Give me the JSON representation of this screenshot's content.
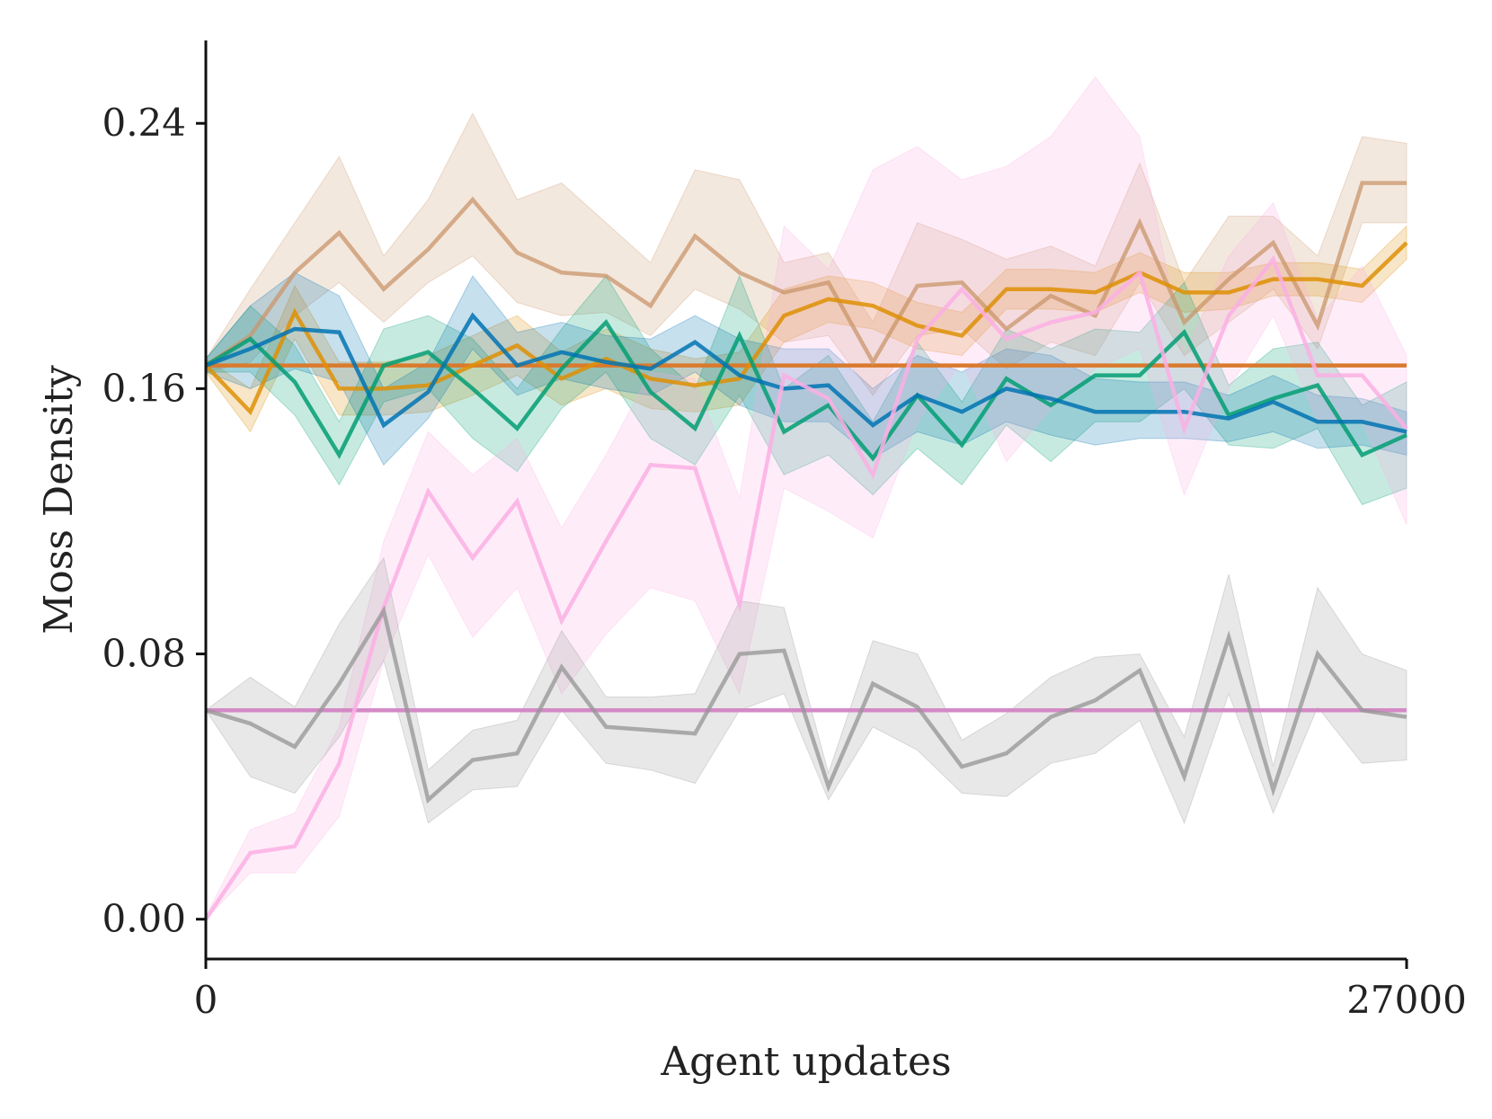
{
  "chart_data": {
    "type": "line",
    "title": "",
    "xlabel": "Agent updates",
    "ylabel": "Moss Density",
    "xlim": [
      0,
      27000
    ],
    "ylim": [
      -0.012,
      0.265
    ],
    "xticks": [
      0,
      27000
    ],
    "xtick_labels": [
      "0",
      "27000"
    ],
    "yticks": [
      0.0,
      0.08,
      0.16,
      0.24
    ],
    "ytick_labels": [
      "0.00",
      "0.08",
      "0.16",
      "0.24"
    ],
    "grid": false,
    "legend": "none",
    "x": [
      0,
      1000,
      2000,
      3000,
      4000,
      5000,
      6000,
      7000,
      8000,
      9000,
      10000,
      11000,
      12000,
      13000,
      14000,
      15000,
      16000,
      17000,
      18000,
      19000,
      20000,
      21000,
      22000,
      23000,
      24000,
      25000,
      26000,
      27000
    ],
    "series": [
      {
        "name": "tan",
        "color": "#c9966b",
        "values": [
          0.167,
          0.176,
          0.195,
          0.207,
          0.19,
          0.202,
          0.217,
          0.201,
          0.195,
          0.194,
          0.185,
          0.206,
          0.195,
          0.189,
          0.192,
          0.168,
          0.191,
          0.192,
          0.178,
          0.188,
          0.182,
          0.21,
          0.18,
          0.193,
          0.204,
          0.179,
          0.222,
          0.222
        ],
        "lower": [
          0.165,
          0.168,
          0.182,
          0.192,
          0.18,
          0.192,
          0.2,
          0.186,
          0.182,
          0.183,
          0.176,
          0.19,
          0.184,
          0.174,
          0.176,
          0.158,
          0.176,
          0.178,
          0.166,
          0.174,
          0.17,
          0.192,
          0.17,
          0.18,
          0.19,
          0.172,
          0.21,
          0.21
        ],
        "upper": [
          0.169,
          0.19,
          0.21,
          0.23,
          0.2,
          0.217,
          0.243,
          0.217,
          0.222,
          0.21,
          0.198,
          0.226,
          0.223,
          0.198,
          0.201,
          0.18,
          0.21,
          0.205,
          0.199,
          0.203,
          0.197,
          0.228,
          0.192,
          0.212,
          0.212,
          0.2,
          0.236,
          0.234
        ]
      },
      {
        "name": "orange",
        "color": "#de8f05",
        "values": [
          0.167,
          0.153,
          0.183,
          0.16,
          0.16,
          0.161,
          0.167,
          0.173,
          0.163,
          0.169,
          0.163,
          0.161,
          0.163,
          0.182,
          0.187,
          0.185,
          0.179,
          0.176,
          0.19,
          0.19,
          0.189,
          0.195,
          0.189,
          0.189,
          0.193,
          0.193,
          0.191,
          0.204
        ],
        "lower": [
          0.165,
          0.147,
          0.175,
          0.152,
          0.152,
          0.153,
          0.158,
          0.164,
          0.155,
          0.16,
          0.154,
          0.153,
          0.155,
          0.174,
          0.18,
          0.178,
          0.172,
          0.17,
          0.184,
          0.184,
          0.183,
          0.189,
          0.183,
          0.184,
          0.188,
          0.188,
          0.186,
          0.199
        ],
        "upper": [
          0.169,
          0.16,
          0.191,
          0.168,
          0.168,
          0.17,
          0.176,
          0.182,
          0.171,
          0.178,
          0.172,
          0.169,
          0.171,
          0.19,
          0.194,
          0.192,
          0.186,
          0.183,
          0.196,
          0.196,
          0.195,
          0.201,
          0.195,
          0.195,
          0.198,
          0.198,
          0.196,
          0.209
        ]
      },
      {
        "name": "green",
        "color": "#029e73",
        "values": [
          0.167,
          0.175,
          0.162,
          0.14,
          0.167,
          0.171,
          0.16,
          0.148,
          0.166,
          0.18,
          0.159,
          0.148,
          0.176,
          0.147,
          0.155,
          0.139,
          0.158,
          0.143,
          0.163,
          0.155,
          0.164,
          0.164,
          0.177,
          0.152,
          0.157,
          0.161,
          0.14,
          0.146
        ],
        "lower": [
          0.165,
          0.165,
          0.152,
          0.131,
          0.156,
          0.16,
          0.145,
          0.135,
          0.154,
          0.165,
          0.145,
          0.137,
          0.158,
          0.134,
          0.14,
          0.128,
          0.142,
          0.131,
          0.149,
          0.138,
          0.15,
          0.15,
          0.16,
          0.143,
          0.142,
          0.148,
          0.125,
          0.13
        ],
        "upper": [
          0.169,
          0.185,
          0.173,
          0.15,
          0.178,
          0.182,
          0.175,
          0.16,
          0.178,
          0.194,
          0.172,
          0.16,
          0.194,
          0.16,
          0.17,
          0.15,
          0.174,
          0.156,
          0.178,
          0.172,
          0.178,
          0.177,
          0.192,
          0.161,
          0.172,
          0.174,
          0.155,
          0.162
        ]
      },
      {
        "name": "blue",
        "color": "#0173b2",
        "values": [
          0.167,
          0.172,
          0.178,
          0.177,
          0.149,
          0.159,
          0.182,
          0.167,
          0.171,
          0.168,
          0.166,
          0.174,
          0.164,
          0.16,
          0.161,
          0.149,
          0.158,
          0.153,
          0.16,
          0.157,
          0.153,
          0.153,
          0.153,
          0.151,
          0.156,
          0.15,
          0.15,
          0.147
        ],
        "lower": [
          0.165,
          0.16,
          0.166,
          0.162,
          0.137,
          0.151,
          0.172,
          0.158,
          0.163,
          0.16,
          0.158,
          0.165,
          0.155,
          0.15,
          0.15,
          0.139,
          0.147,
          0.143,
          0.15,
          0.146,
          0.143,
          0.145,
          0.145,
          0.144,
          0.147,
          0.142,
          0.143,
          0.14
        ],
        "upper": [
          0.169,
          0.185,
          0.195,
          0.188,
          0.16,
          0.168,
          0.194,
          0.177,
          0.18,
          0.176,
          0.175,
          0.182,
          0.175,
          0.172,
          0.172,
          0.16,
          0.17,
          0.165,
          0.172,
          0.17,
          0.163,
          0.162,
          0.162,
          0.158,
          0.164,
          0.158,
          0.157,
          0.153
        ]
      },
      {
        "name": "pink",
        "color": "#fbafe4",
        "values": [
          0.0,
          0.02,
          0.022,
          0.047,
          0.094,
          0.129,
          0.109,
          0.126,
          0.09,
          0.114,
          0.137,
          0.136,
          0.095,
          0.164,
          0.157,
          0.134,
          0.175,
          0.19,
          0.175,
          0.18,
          0.183,
          0.195,
          0.148,
          0.182,
          0.199,
          0.164,
          0.164,
          0.148
        ],
        "lower": [
          0.0,
          0.014,
          0.014,
          0.031,
          0.078,
          0.11,
          0.085,
          0.1,
          0.068,
          0.086,
          0.1,
          0.096,
          0.068,
          0.13,
          0.123,
          0.115,
          0.15,
          0.168,
          0.138,
          0.154,
          0.166,
          0.172,
          0.128,
          0.16,
          0.182,
          0.15,
          0.15,
          0.119
        ],
        "upper": [
          0.001,
          0.027,
          0.032,
          0.058,
          0.114,
          0.147,
          0.134,
          0.145,
          0.118,
          0.14,
          0.165,
          0.163,
          0.127,
          0.209,
          0.196,
          0.226,
          0.233,
          0.223,
          0.227,
          0.236,
          0.254,
          0.236,
          0.17,
          0.2,
          0.216,
          0.181,
          0.197,
          0.17
        ]
      },
      {
        "name": "gray",
        "color": "#949494",
        "values": [
          0.063,
          0.059,
          0.052,
          0.071,
          0.093,
          0.036,
          0.048,
          0.05,
          0.076,
          0.058,
          0.057,
          0.056,
          0.08,
          0.081,
          0.04,
          0.071,
          0.064,
          0.046,
          0.05,
          0.061,
          0.066,
          0.075,
          0.043,
          0.085,
          0.039,
          0.08,
          0.063,
          0.061
        ],
        "lower": [
          0.063,
          0.043,
          0.038,
          0.055,
          0.078,
          0.029,
          0.039,
          0.04,
          0.063,
          0.047,
          0.045,
          0.041,
          0.063,
          0.068,
          0.036,
          0.058,
          0.051,
          0.038,
          0.037,
          0.047,
          0.05,
          0.06,
          0.029,
          0.068,
          0.032,
          0.064,
          0.047,
          0.048
        ],
        "upper": [
          0.063,
          0.073,
          0.064,
          0.089,
          0.109,
          0.045,
          0.057,
          0.06,
          0.087,
          0.067,
          0.067,
          0.068,
          0.096,
          0.094,
          0.044,
          0.084,
          0.08,
          0.054,
          0.062,
          0.073,
          0.079,
          0.08,
          0.055,
          0.104,
          0.046,
          0.1,
          0.08,
          0.075
        ]
      }
    ],
    "reference_lines": [
      {
        "name": "orange-baseline",
        "color": "#d97a2e",
        "y": 0.167
      },
      {
        "name": "magenta-baseline",
        "color": "#d48ac6",
        "y": 0.063
      }
    ]
  }
}
